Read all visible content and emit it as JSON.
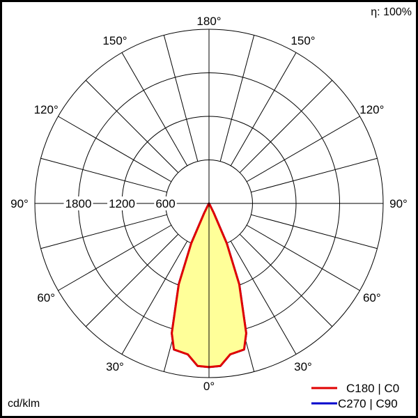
{
  "efficiency_label": "η: 100%",
  "unit_label": "cd/klm",
  "chart_data": {
    "type": "polar",
    "unit": "cd/klm",
    "radial_ticks": [
      600,
      1200,
      1800
    ],
    "radial_tick_labels": [
      "600",
      "1200",
      "1800"
    ],
    "rmax": 2400,
    "angle_ticks": [
      0,
      30,
      60,
      90,
      120,
      150,
      180
    ],
    "angle_tick_labels": [
      "0°",
      "30°",
      "60°",
      "90°",
      "120°",
      "150°",
      "180°"
    ],
    "grid": true,
    "grid_angle_step": 15,
    "legend_position": "bottom-right",
    "series": [
      {
        "name": "C270 | C90",
        "color": "#0000cc",
        "gamma": [
          0,
          4,
          8,
          13.5,
          16,
          20.5,
          24,
          26.5,
          30,
          35,
          90
        ],
        "values": [
          2255,
          2245,
          2100,
          2070,
          1860,
          1190,
          600,
          145,
          20,
          0,
          0
        ]
      },
      {
        "name": "C180 | C0",
        "color": "#e00000",
        "fill": "#ffff99",
        "gamma": [
          0,
          4,
          8,
          13.5,
          16,
          20.5,
          24,
          26.5,
          30,
          35,
          90
        ],
        "values": [
          2255,
          2245,
          2100,
          2070,
          1860,
          1190,
          600,
          145,
          20,
          0,
          0
        ]
      }
    ]
  }
}
